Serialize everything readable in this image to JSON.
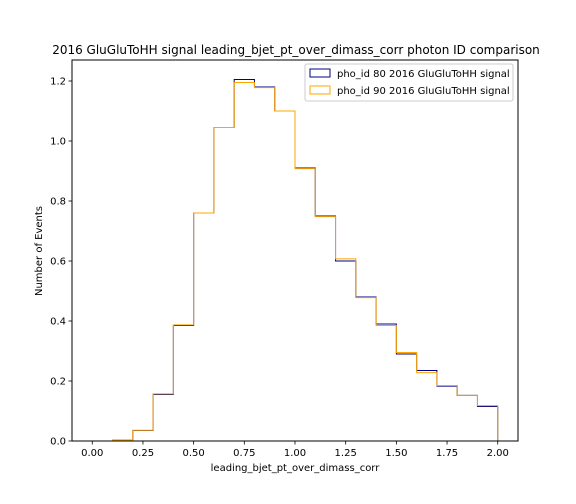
{
  "chart_data": {
    "type": "step",
    "title": "2016 GluGluToHH signal leading_bjet_pt_over_dimass_corr photon ID comparison",
    "xlabel": "leading_bjet_pt_over_dimass_corr",
    "ylabel": "Number of Events",
    "xlim": [
      -0.1,
      2.1
    ],
    "ylim": [
      0,
      1.27
    ],
    "xticks": [
      0.0,
      0.25,
      0.5,
      0.75,
      1.0,
      1.25,
      1.5,
      1.75,
      2.0
    ],
    "xtick_labels": [
      "0.00",
      "0.25",
      "0.50",
      "0.75",
      "1.00",
      "1.25",
      "1.50",
      "1.75",
      "2.00"
    ],
    "yticks": [
      0.0,
      0.2,
      0.4,
      0.6,
      0.8,
      1.0,
      1.2
    ],
    "ytick_labels": [
      "0.0",
      "0.2",
      "0.4",
      "0.6",
      "0.8",
      "1.0",
      "1.2"
    ],
    "bin_edges": [
      0.1,
      0.2,
      0.3,
      0.4,
      0.5,
      0.6,
      0.7,
      0.8,
      0.9,
      1.0,
      1.1,
      1.2,
      1.3,
      1.4,
      1.5,
      1.6,
      1.7,
      1.8,
      1.9,
      2.0
    ],
    "legend_position": "top-right",
    "grid": false,
    "series": [
      {
        "name": "pho_id 80 2016 GluGluToHH signal",
        "color": "#00008b",
        "values": [
          0.003,
          0.035,
          0.155,
          0.385,
          0.76,
          1.045,
          1.205,
          1.18,
          1.1,
          0.91,
          0.75,
          0.6,
          0.48,
          0.39,
          0.29,
          0.235,
          0.183,
          0.152,
          0.115
        ]
      },
      {
        "name": "pho_id 90 2016 GluGluToHH signal",
        "color": "#ffa500",
        "values": [
          0.003,
          0.036,
          0.157,
          0.387,
          0.76,
          1.045,
          1.195,
          1.178,
          1.1,
          0.908,
          0.748,
          0.607,
          0.478,
          0.385,
          0.295,
          0.228,
          0.185,
          0.152,
          0.118
        ]
      }
    ]
  }
}
